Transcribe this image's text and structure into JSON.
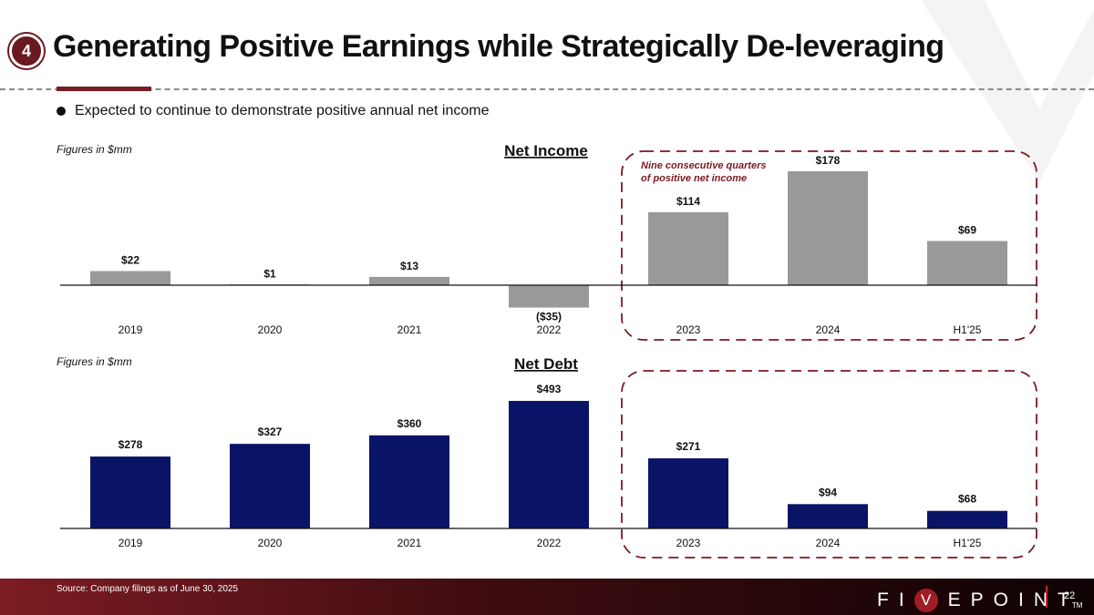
{
  "slide": {
    "section_number": "4",
    "title": "Generating Positive Earnings while Strategically De-leveraging",
    "bullet": "Expected to continue to demonstrate positive annual net income",
    "source": "Source: Company filings as of June 30, 2025",
    "logo_parts": [
      "FI",
      "V",
      "EPOINT"
    ],
    "logo_tm": "TM",
    "page_number": "22",
    "colors": {
      "accent": "#7b1c22",
      "gray_bar": "#999999",
      "navy_bar": "#0a1466",
      "dash_box": "#7a1a22"
    }
  },
  "chart_data": [
    {
      "type": "bar",
      "title": "Net Income",
      "note": "Figures in $mm",
      "categories": [
        "2019",
        "2020",
        "2021",
        "2022",
        "2023",
        "2024",
        "H1'25"
      ],
      "values": [
        22,
        1,
        13,
        -35,
        114,
        178,
        69
      ],
      "labels": [
        "$22",
        "$1",
        "$13",
        "($35)",
        "$114",
        "$178",
        "$69"
      ],
      "ylim": [
        -35,
        178
      ],
      "highlight_categories": [
        "2023",
        "2024",
        "H1'25"
      ],
      "annotation": [
        "Nine consecutive quarters",
        "of positive net income"
      ]
    },
    {
      "type": "bar",
      "title": "Net Debt",
      "note": "Figures in $mm",
      "categories": [
        "2019",
        "2020",
        "2021",
        "2022",
        "2023",
        "2024",
        "H1'25"
      ],
      "values": [
        278,
        327,
        360,
        493,
        271,
        94,
        68
      ],
      "labels": [
        "$278",
        "$327",
        "$360",
        "$493",
        "$271",
        "$94",
        "$68"
      ],
      "ylim": [
        0,
        493
      ],
      "highlight_categories": [
        "2023",
        "2024",
        "H1'25"
      ]
    }
  ]
}
